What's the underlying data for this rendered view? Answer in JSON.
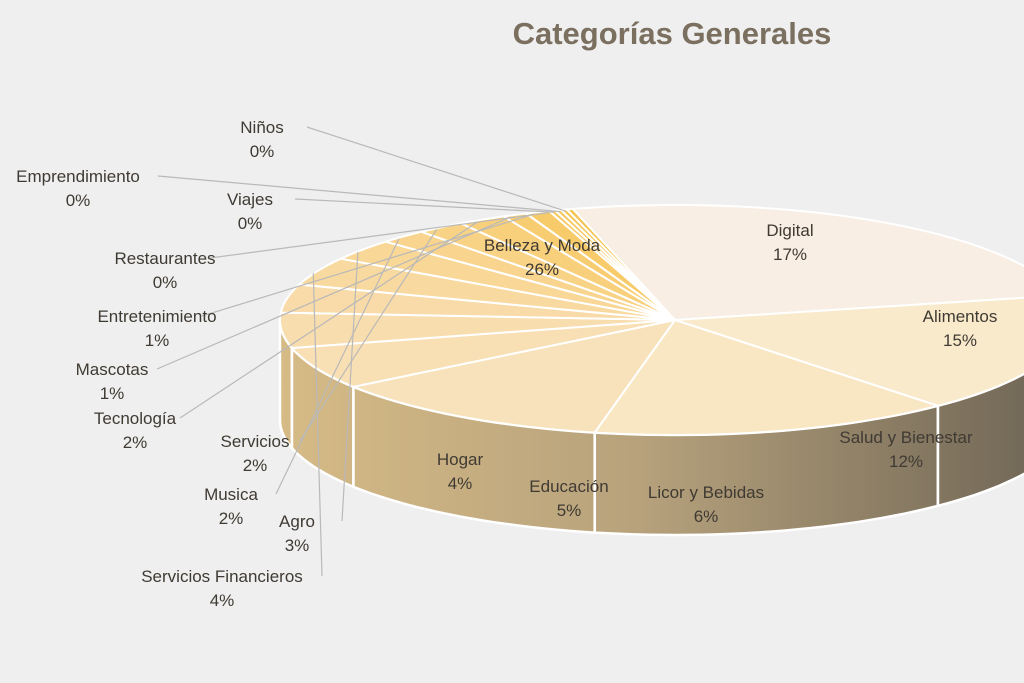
{
  "chart_data": {
    "type": "pie",
    "title": "Categorías Generales",
    "three_d": true,
    "slices": [
      {
        "label": "Belleza y Moda",
        "value": 26,
        "value_label": "26%",
        "color": "#f8eee3"
      },
      {
        "label": "Digital",
        "value": 17,
        "value_label": "17%",
        "color": "#f9eacc"
      },
      {
        "label": "Alimentos",
        "value": 15,
        "value_label": "15%",
        "color": "#f9e6c2"
      },
      {
        "label": "Salud y Bienestar",
        "value": 12,
        "value_label": "12%",
        "color": "#f8e2bb"
      },
      {
        "label": "Licor y Bebidas",
        "value": 6,
        "value_label": "6%",
        "color": "#f8dfb4"
      },
      {
        "label": "Educación",
        "value": 5,
        "value_label": "5%",
        "color": "#f8ddae"
      },
      {
        "label": "Hogar",
        "value": 4,
        "value_label": "4%",
        "color": "#f8dba8"
      },
      {
        "label": "Servicios Financieros",
        "value": 4,
        "value_label": "4%",
        "color": "#f8d99f"
      },
      {
        "label": "Agro",
        "value": 3,
        "value_label": "3%",
        "color": "#f8d797"
      },
      {
        "label": "Musica",
        "value": 2,
        "value_label": "2%",
        "color": "#f8d48e"
      },
      {
        "label": "Servicios",
        "value": 2,
        "value_label": "2%",
        "color": "#f8d285"
      },
      {
        "label": "Tecnología",
        "value": 2,
        "value_label": "2%",
        "color": "#f8d07c"
      },
      {
        "label": "Mascotas",
        "value": 1,
        "value_label": "1%",
        "color": "#f8cd72"
      },
      {
        "label": "Entretenimiento",
        "value": 1,
        "value_label": "1%",
        "color": "#f7cb6a"
      },
      {
        "label": "Restaurantes",
        "value": 0,
        "value_label": "0%",
        "color": "#f7c962"
      },
      {
        "label": "Viajes",
        "value": 0,
        "value_label": "0%",
        "color": "#f6c75c"
      },
      {
        "label": "Emprendimiento",
        "value": 0,
        "value_label": "0%",
        "color": "#f5c556"
      },
      {
        "label": "Niños",
        "value": 0,
        "value_label": "0%",
        "color": "#f4c350"
      }
    ]
  }
}
